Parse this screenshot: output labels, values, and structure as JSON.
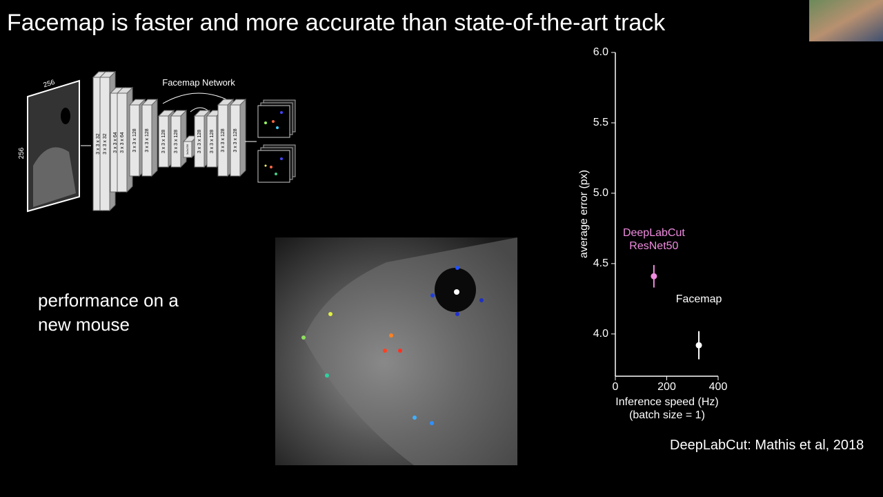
{
  "title": "Facemap is faster and more accurate than state-of-the-art track",
  "network": {
    "title": "Facemap Network",
    "input_width": "256",
    "input_height": "256",
    "layers": [
      "3 x 3 x 32",
      "3 x 3 x 32",
      "3 x 3 x 64",
      "3 x 3 x 64",
      "3 x 3 x 128",
      "3 x 3 x 128",
      "3 x 3 x 128",
      "3 x 3 x 128",
      "3x3x256",
      "3 x 3 x 128",
      "3 x 3 x 128",
      "3 x 3 x 128",
      "3 x 3 x 128"
    ]
  },
  "caption": "performance on a new mouse",
  "citation": "DeepLabCut: Mathis et al, 2018",
  "chart_data": {
    "type": "scatter",
    "xlabel": "Inference speed (Hz) (batch size = 1)",
    "ylabel": "average error (px)",
    "xlim": [
      0,
      400
    ],
    "xticks": [
      0,
      200,
      400
    ],
    "ylim": [
      3.7,
      6.0
    ],
    "yticks": [
      {
        "value": 4.0,
        "label": "4.0"
      },
      {
        "value": 4.5,
        "label": "4.5"
      },
      {
        "value": 5.0,
        "label": "5.0"
      },
      {
        "value": 5.5,
        "label": "5.5"
      },
      {
        "value": 6.0,
        "label": "6.0"
      }
    ],
    "series": [
      {
        "name": "DeepLabCut ResNet50",
        "color": "#f08ce0",
        "x": [
          150
        ],
        "values": [
          4.41
        ],
        "errors": [
          0.08
        ]
      },
      {
        "name": "Facemap",
        "color": "#ffffff",
        "x": [
          325
        ],
        "values": [
          3.92
        ],
        "errors": [
          0.1
        ]
      }
    ]
  }
}
